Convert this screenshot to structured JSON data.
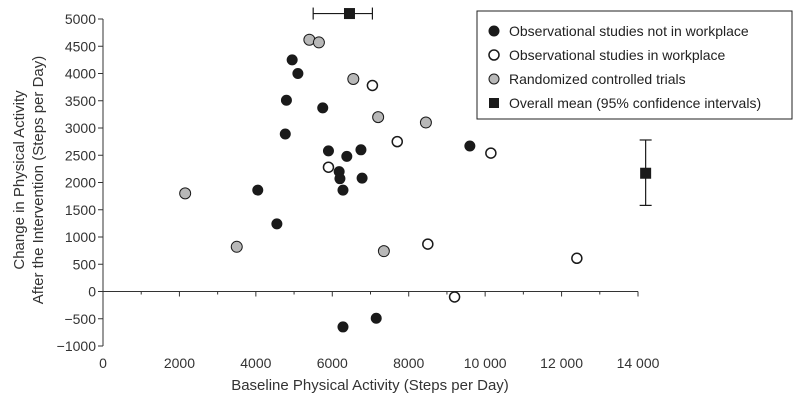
{
  "chart_data": {
    "type": "scatter",
    "xlabel": "Baseline Physical Activity (Steps per Day)",
    "ylabel_lines": [
      "Change in Physical Activity",
      "After the Intervention (Steps per Day)"
    ],
    "xlim": [
      0,
      14000
    ],
    "ylim": [
      -1000,
      5000
    ],
    "x_ticks": [
      {
        "value": 0,
        "label": "0"
      },
      {
        "value": 2000,
        "label": "2000"
      },
      {
        "value": 4000,
        "label": "4000"
      },
      {
        "value": 6000,
        "label": "6000"
      },
      {
        "value": 8000,
        "label": "8000"
      },
      {
        "value": 10000,
        "label": "10 000"
      },
      {
        "value": 12000,
        "label": "12 000"
      },
      {
        "value": 14000,
        "label": "14 000"
      }
    ],
    "y_ticks": [
      {
        "value": -1000,
        "label": "−1000"
      },
      {
        "value": -500,
        "label": "−500"
      },
      {
        "value": 0,
        "label": "0"
      },
      {
        "value": 500,
        "label": "500"
      },
      {
        "value": 1000,
        "label": "1000"
      },
      {
        "value": 1500,
        "label": "1500"
      },
      {
        "value": 2000,
        "label": "2000"
      },
      {
        "value": 2500,
        "label": "2500"
      },
      {
        "value": 3000,
        "label": "3000"
      },
      {
        "value": 3500,
        "label": "3500"
      },
      {
        "value": 4000,
        "label": "4000"
      },
      {
        "value": 4500,
        "label": "4500"
      },
      {
        "value": 5000,
        "label": "5000"
      }
    ],
    "legend_position": "top-right",
    "series": [
      {
        "name": "Observational studies not in workplace",
        "marker": "filled-circle",
        "color": "#1a1a1a",
        "points": [
          [
            4050,
            1860
          ],
          [
            4550,
            1240
          ],
          [
            4770,
            2890
          ],
          [
            4800,
            3510
          ],
          [
            4950,
            4250
          ],
          [
            5100,
            4000
          ],
          [
            5750,
            3370
          ],
          [
            5900,
            2580
          ],
          [
            6180,
            2200
          ],
          [
            6200,
            2070
          ],
          [
            6280,
            1860
          ],
          [
            6380,
            2480
          ],
          [
            6750,
            2600
          ],
          [
            6780,
            2080
          ],
          [
            9600,
            2670
          ],
          [
            6280,
            -650
          ],
          [
            7150,
            -490
          ]
        ]
      },
      {
        "name": "Observational studies in workplace",
        "marker": "open-circle",
        "color": "#1a1a1a",
        "points": [
          [
            5900,
            2280
          ],
          [
            7050,
            3780
          ],
          [
            7700,
            2750
          ],
          [
            8500,
            870
          ],
          [
            9200,
            -100
          ],
          [
            10150,
            2540
          ],
          [
            12400,
            610
          ]
        ]
      },
      {
        "name": "Randomized controlled trials",
        "marker": "gray-circle",
        "color": "#b8b8b8",
        "points": [
          [
            2150,
            1800
          ],
          [
            3500,
            820
          ],
          [
            5400,
            4620
          ],
          [
            5650,
            4570
          ],
          [
            6550,
            3900
          ],
          [
            7200,
            3200
          ],
          [
            7350,
            740
          ],
          [
            8450,
            3100
          ]
        ]
      },
      {
        "name": "Overall mean (95% confidence intervals)",
        "marker": "filled-square",
        "color": "#1a1a1a",
        "points": [
          {
            "x": 6450,
            "y": 5100,
            "x_ci": [
              5500,
              7050
            ]
          },
          {
            "x": 14200,
            "y": 2170,
            "y_ci": [
              1580,
              2780
            ]
          }
        ]
      }
    ]
  }
}
